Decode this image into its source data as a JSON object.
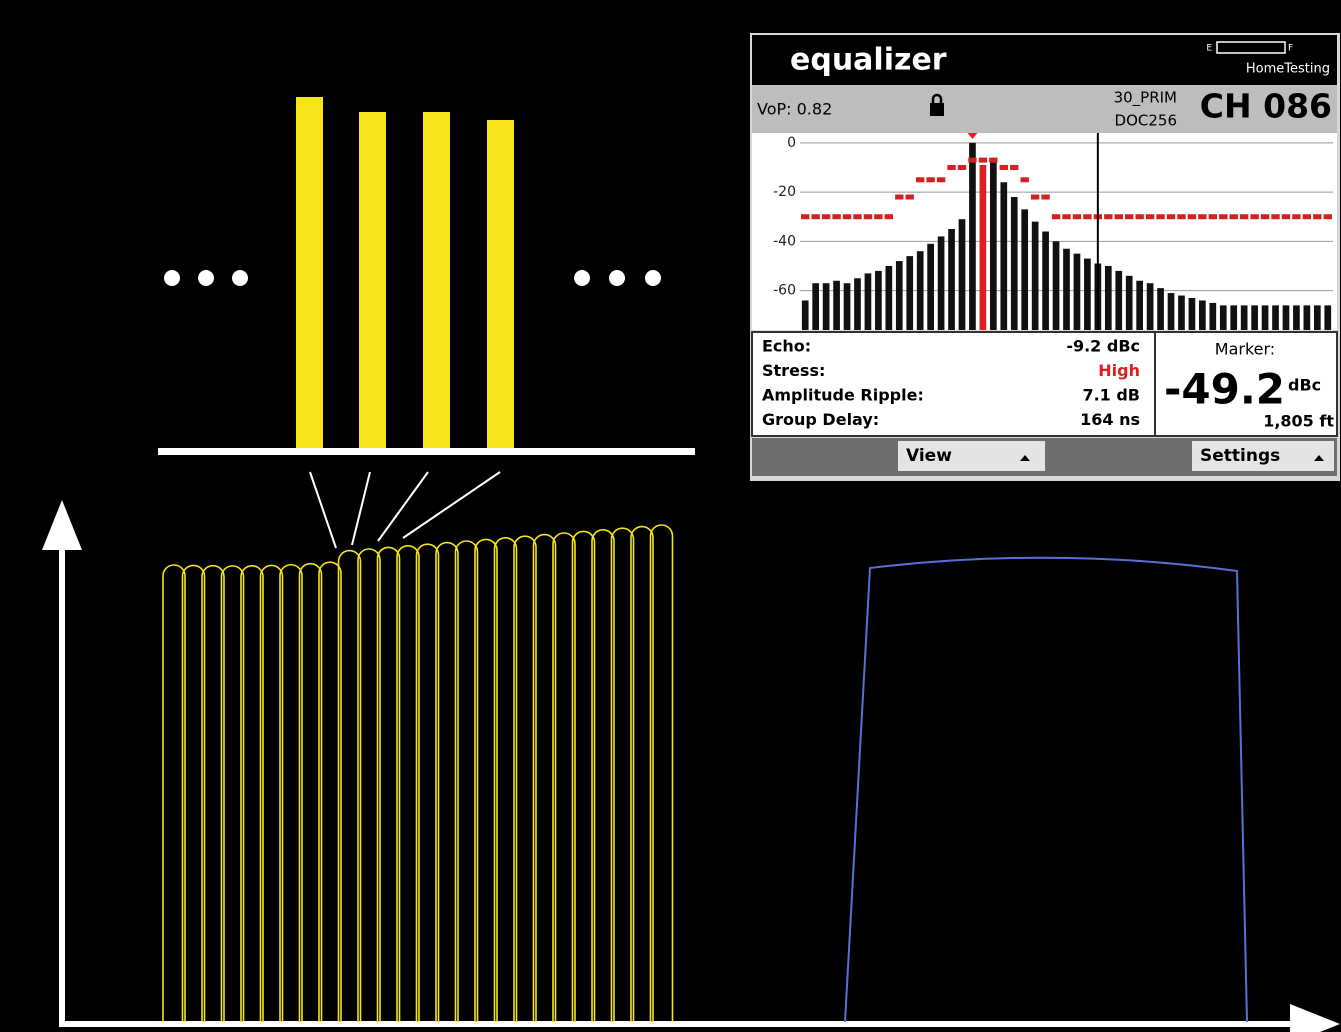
{
  "screen": {
    "title": "equalizer",
    "battery": {
      "empty": "E",
      "full": "F"
    },
    "brand": "HomeTesting",
    "vop": "VoP: 0.82",
    "channel_plan": "30_PRIM",
    "modulation": "DOC256",
    "channel": "CH 086",
    "plot": {
      "ylim": [
        -76,
        4
      ],
      "yticks": [
        0,
        -20,
        -40,
        -60
      ],
      "bar_color": "#111111",
      "highlight_color": "#e02020",
      "highlight_index": 17,
      "mask_color": "#d42020",
      "marker_index": 28,
      "taps": [
        -64,
        -57,
        -57,
        -56,
        -57,
        -55,
        -53,
        -52,
        -50,
        -48,
        -46,
        -44,
        -41,
        -38,
        -35,
        -31,
        0,
        -9,
        -8,
        -16,
        -22,
        -27,
        -32,
        -36,
        -40,
        -43,
        -45,
        -47,
        -49,
        -50,
        -52,
        -54,
        -56,
        -57,
        -59,
        -61,
        -62,
        -63,
        -64,
        -65,
        -66,
        -66,
        -66,
        -66,
        -66,
        -66,
        -66,
        -66,
        -66,
        -66,
        -66
      ],
      "mask": [
        -30,
        -30,
        -30,
        -30,
        -30,
        -30,
        -30,
        -30,
        -30,
        -22,
        -22,
        -15,
        -15,
        -15,
        -10,
        -10,
        -7,
        -7,
        -7,
        -10,
        -10,
        -15,
        -22,
        -22,
        -30,
        -30,
        -30,
        -30,
        -30,
        -30,
        -30,
        -30,
        -30,
        -30,
        -30,
        -30,
        -30,
        -30,
        -30,
        -30,
        -30,
        -30,
        -30,
        -30,
        -30,
        -30,
        -30,
        -30,
        -30,
        -30,
        -30
      ]
    },
    "stats": [
      {
        "label": "Echo:",
        "value": "-9.2 dBc"
      },
      {
        "label": "Stress:",
        "value": "High"
      },
      {
        "label": "Amplitude Ripple:",
        "value": "7.1 dB"
      },
      {
        "label": "Group Delay:",
        "value": "164 ns"
      }
    ],
    "marker": {
      "label": "Marker:",
      "value": "-49.2",
      "unit": "dBc",
      "distance": "1,805 ft"
    },
    "buttons": [
      "View",
      "Settings"
    ]
  }
}
